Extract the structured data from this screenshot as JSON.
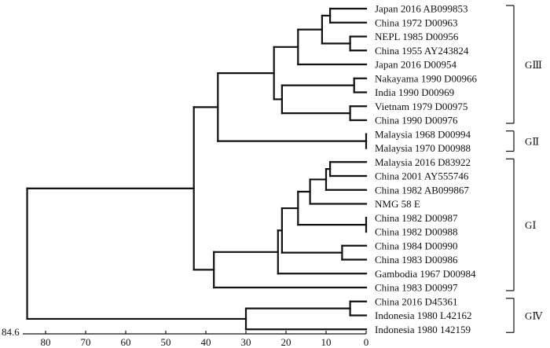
{
  "scale": {
    "max_label": "84.6",
    "max_value": 84.6,
    "ticks": [
      80,
      70,
      60,
      50,
      40,
      30,
      20,
      10,
      0
    ],
    "tick_labels": [
      "80",
      "70",
      "60",
      "50",
      "40",
      "30",
      "20",
      "10",
      "0"
    ]
  },
  "leaves": [
    "Japan 2016 AB099853",
    "China 1972 D00963",
    "NEPL 1985 D00956",
    "China 1955 AY243824",
    "Japan 2016 D00954",
    "Nakayama 1990 D00966",
    "India 1990 D00969",
    "Vietnam 1979 D00975",
    "China 1990 D00976",
    "Malaysia 1968 D00994",
    "Malaysia 1970 D00988",
    "Malaysia 2016 D83922",
    "China 2001 AY555746",
    "China 1982 AB099867",
    "NMG 58 E",
    "China 1982 D00987",
    "China 1982 D00988",
    "China 1984 D00990",
    "China 1983 D00986",
    "Gambodia 1967 D00984",
    "China 1983 D00997",
    "China 2016 D45361",
    "Indonesia 1980 L42162",
    "Indonesia 1980 142159"
  ],
  "groups": [
    {
      "label": "GⅢ",
      "first": 0,
      "last": 8
    },
    {
      "label": "GⅡ",
      "first": 9,
      "last": 10
    },
    {
      "label": "GⅠ",
      "first": 11,
      "last": 20
    },
    {
      "label": "GⅣ",
      "first": 21,
      "last": 23
    }
  ],
  "clusters": [
    {
      "height": 9,
      "children": [
        "L0",
        "L1"
      ]
    },
    {
      "height": 4,
      "children": [
        "L2",
        "L3"
      ]
    },
    {
      "height": 11,
      "children": [
        "C0",
        "C1"
      ]
    },
    {
      "height": 17,
      "children": [
        "C2",
        "L4"
      ]
    },
    {
      "height": 3,
      "children": [
        "L5",
        "L6"
      ]
    },
    {
      "height": 4,
      "children": [
        "L7",
        "L8"
      ]
    },
    {
      "height": 21,
      "children": [
        "C4",
        "C5"
      ]
    },
    {
      "height": 23,
      "children": [
        "C3",
        "C6"
      ]
    },
    {
      "height": 0,
      "children": [
        "L9",
        "L10"
      ]
    },
    {
      "height": 37,
      "children": [
        "C7",
        "C8"
      ]
    },
    {
      "height": 9,
      "children": [
        "L11",
        "L12"
      ]
    },
    {
      "height": 10,
      "children": [
        "C10",
        "L13"
      ]
    },
    {
      "height": 0,
      "children": [
        "L15",
        "L16"
      ]
    },
    {
      "height": 14,
      "children": [
        "C11",
        "L14"
      ]
    },
    {
      "height": 17,
      "children": [
        "C13",
        "C12"
      ]
    },
    {
      "height": 6,
      "children": [
        "L17",
        "L18"
      ]
    },
    {
      "height": 21,
      "children": [
        "C14",
        "C15"
      ]
    },
    {
      "height": 22,
      "children": [
        "C16",
        "L19"
      ]
    },
    {
      "height": 38,
      "children": [
        "C17",
        "L20"
      ]
    },
    {
      "height": 43,
      "children": [
        "C9",
        "C18"
      ]
    },
    {
      "height": 4,
      "children": [
        "L21",
        "L22"
      ]
    },
    {
      "height": 30,
      "children": [
        "C20",
        "L23"
      ]
    },
    {
      "height": 84.6,
      "children": [
        "C19",
        "C21"
      ]
    }
  ]
}
